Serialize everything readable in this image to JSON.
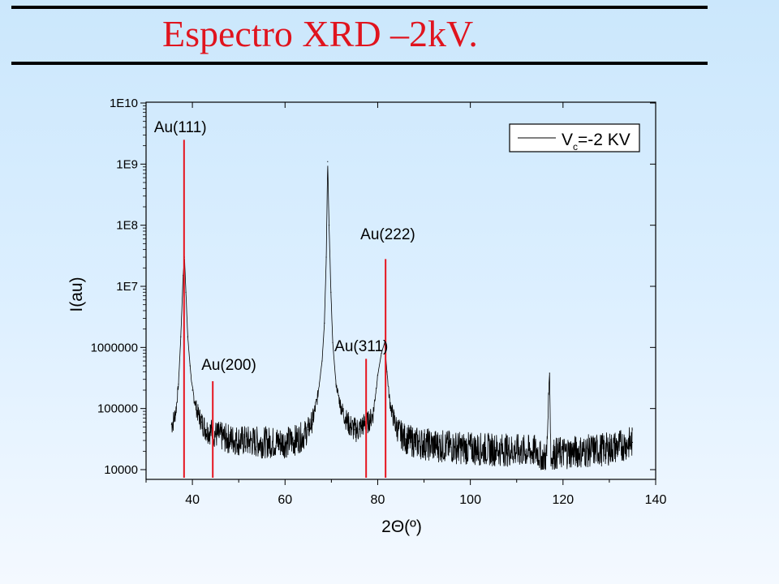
{
  "slide": {
    "title": "Espectro XRD –2kV."
  },
  "chart_data": {
    "type": "line",
    "xlabel": "2Θ(º)",
    "ylabel": "I(au)",
    "xlim": [
      30,
      140
    ],
    "ylim": [
      9000,
      10000000000
    ],
    "y_scale": "log",
    "grid": false,
    "legend_position": "top-right",
    "x_ticks": [
      40,
      60,
      80,
      100,
      120,
      140
    ],
    "y_ticks": [
      {
        "value": 10000,
        "label": "10000"
      },
      {
        "value": 100000,
        "label": "100000"
      },
      {
        "value": 1000000,
        "label": "1000000"
      },
      {
        "value": 10000000,
        "label": "1E7"
      },
      {
        "value": 100000000,
        "label": "1E8"
      },
      {
        "value": 1000000000,
        "label": "1E9"
      },
      {
        "value": 10000000000,
        "label": "1E10"
      }
    ],
    "series": [
      {
        "name": "V",
        "name_subscript": "c",
        "name_suffix": "=-2 KV",
        "color": "#000000",
        "x": [
          35.5,
          36,
          36.5,
          37,
          37.5,
          38,
          38.3,
          38.6,
          39,
          39.5,
          40,
          41,
          42,
          43,
          44,
          45,
          47,
          50,
          55,
          60,
          62,
          64,
          65,
          66,
          67,
          68,
          68.5,
          68.9,
          69.2,
          69.5,
          69.9,
          70.3,
          71,
          72,
          73,
          74,
          75,
          76,
          77,
          78,
          79,
          80,
          80.8,
          81.5,
          82,
          82.5,
          83,
          84,
          85,
          86,
          88,
          92,
          100,
          108,
          112,
          114.5,
          115.5,
          116.5,
          116.9,
          117.1,
          117.4,
          118,
          120,
          125,
          130,
          135
        ],
        "y": [
          55000,
          65000,
          100000,
          250000,
          1500000,
          15000000,
          30000000,
          8000000,
          1500000,
          500000,
          200000,
          90000,
          60000,
          45000,
          42000,
          38000,
          33000,
          30000,
          28000,
          28000,
          30000,
          36000,
          45000,
          65000,
          150000,
          600000,
          2500000,
          30000000,
          1100000000,
          100000000,
          8000000,
          1200000,
          250000,
          110000,
          70000,
          52000,
          45000,
          46000,
          55000,
          60000,
          80000,
          350000,
          800000,
          1200000,
          400000,
          150000,
          90000,
          50000,
          38000,
          32000,
          28000,
          25000,
          22000,
          21000,
          20000,
          20000,
          14000,
          17000,
          180000,
          380000,
          15000,
          18000,
          19000,
          20000,
          22000,
          28000
        ]
      }
    ],
    "reference_lines": {
      "color": "#e6141e",
      "lines": [
        {
          "label": "Au(111)",
          "x": 38.2,
          "y": 2500000000
        },
        {
          "label": "Au(200)",
          "x": 44.4,
          "y": 280000
        },
        {
          "label": "Au(311)",
          "x": 77.5,
          "y": 650000
        },
        {
          "label": "Au(222)",
          "x": 81.7,
          "y": 28000000
        }
      ]
    }
  }
}
